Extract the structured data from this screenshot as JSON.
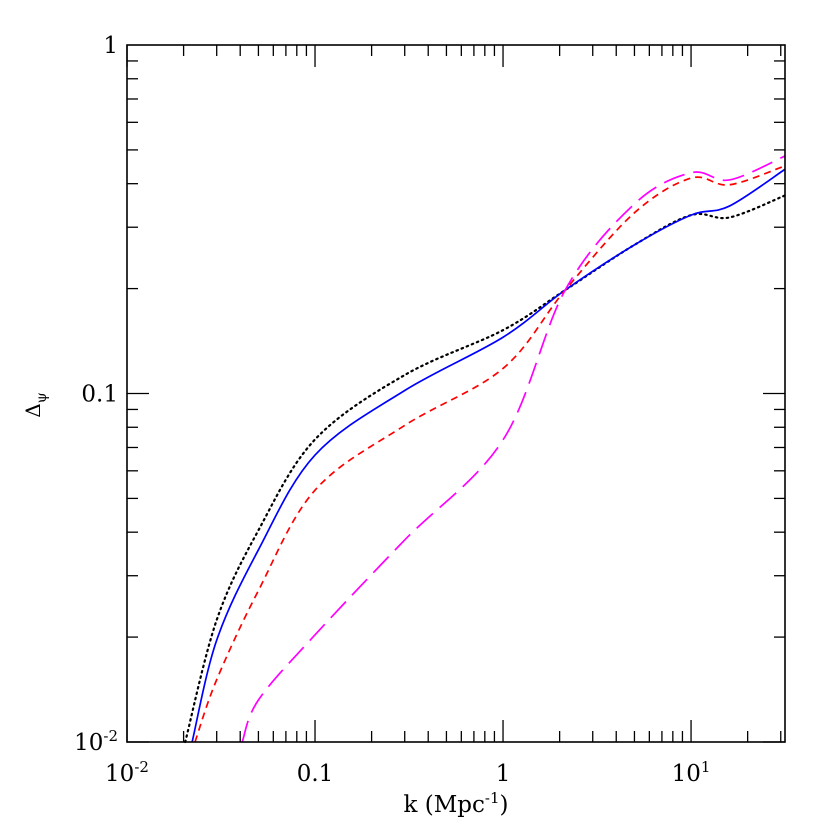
{
  "chart_data": {
    "type": "line",
    "title": "",
    "xlabel": "k (Mpc",
    "xlabel_sup": "-1",
    "xlabel_close": ")",
    "ylabel": "Δ",
    "ylabel_sub": "ψ",
    "xscale": "log",
    "yscale": "log",
    "xlim": [
      0.01,
      31.6
    ],
    "ylim": [
      0.01,
      1
    ],
    "grid": false,
    "x_tick_labels": [
      {
        "value": 0.01,
        "base": "10",
        "sup": "-2"
      },
      {
        "value": 0.1,
        "base": "0.1",
        "sup": ""
      },
      {
        "value": 1,
        "base": "1",
        "sup": ""
      },
      {
        "value": 10,
        "base": "10",
        "sup": "1"
      }
    ],
    "y_tick_labels": [
      {
        "value": 1,
        "base": "1",
        "sup": ""
      },
      {
        "value": 0.1,
        "base": "0.1",
        "sup": ""
      },
      {
        "value": 0.01,
        "base": "10",
        "sup": "-2"
      }
    ],
    "series": [
      {
        "style": "dotted",
        "color": "#000000",
        "x": [
          0.0204,
          0.03,
          0.05,
          0.1,
          0.3,
          1,
          2.14,
          5,
          10,
          16,
          31.6
        ],
        "y": [
          0.01,
          0.0224,
          0.0405,
          0.0738,
          0.113,
          0.152,
          0.198,
          0.267,
          0.325,
          0.32,
          0.37
        ]
      },
      {
        "style": "solid",
        "color": "#0000ff",
        "x": [
          0.0222,
          0.03,
          0.05,
          0.1,
          0.3,
          1,
          2.14,
          5,
          10,
          16,
          31.6
        ],
        "y": [
          0.01,
          0.0196,
          0.0356,
          0.0666,
          0.102,
          0.145,
          0.198,
          0.267,
          0.325,
          0.345,
          0.44
        ]
      },
      {
        "style": "short-dash",
        "color": "#ff0000",
        "x": [
          0.023,
          0.03,
          0.05,
          0.1,
          0.3,
          1,
          2.14,
          5,
          10,
          16,
          31.6
        ],
        "y": [
          0.01,
          0.0151,
          0.0272,
          0.0528,
          0.081,
          0.118,
          0.198,
          0.33,
          0.415,
          0.397,
          0.45
        ]
      },
      {
        "style": "long-dash",
        "color": "#ff00ff",
        "x": [
          0.041,
          0.05,
          0.1,
          0.3,
          1,
          2.14,
          5,
          10,
          16,
          31.6
        ],
        "y": [
          0.01,
          0.0132,
          0.0203,
          0.038,
          0.0736,
          0.198,
          0.35,
          0.43,
          0.41,
          0.48
        ]
      }
    ]
  }
}
